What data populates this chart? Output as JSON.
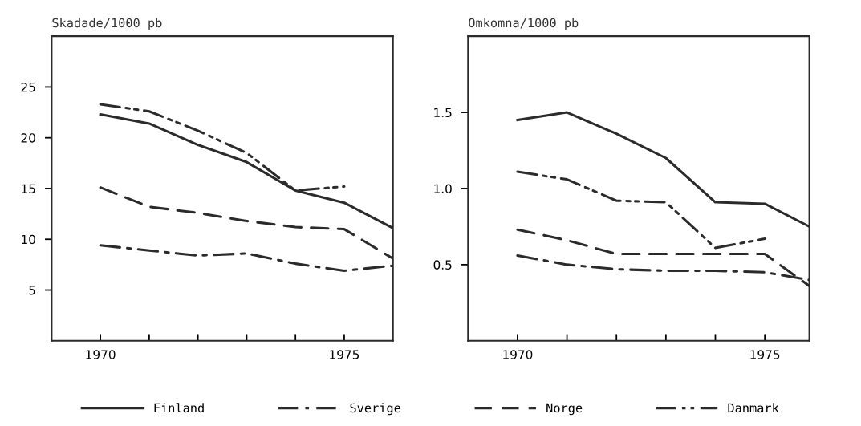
{
  "chart_data": [
    {
      "type": "line",
      "title": "Skadade/1000 pb",
      "legend": "bottom",
      "xlim": [
        1969,
        1976
      ],
      "ylim": [
        0,
        30
      ],
      "xticks": [
        1970,
        {
          "value": 1971,
          "label": null
        },
        {
          "value": 1972,
          "label": null
        },
        {
          "value": 1973,
          "label": null
        },
        {
          "value": 1974,
          "label": null
        },
        1975
      ],
      "yticks": [
        5,
        10,
        15,
        20,
        25
      ],
      "series": [
        {
          "name": "Finland",
          "color": "#2b2b2b",
          "line_style": "solid",
          "x": [
            1970,
            1971,
            1972,
            1973,
            1974,
            1975,
            1976
          ],
          "values": [
            22.3,
            21.4,
            19.3,
            17.6,
            14.8,
            13.6,
            11.1
          ]
        },
        {
          "name": "Sverige",
          "color": "#2b2b2b",
          "line_style": "dashdot",
          "x": [
            1970,
            1971,
            1972,
            1973,
            1974,
            1975,
            1976
          ],
          "values": [
            9.4,
            8.9,
            8.4,
            8.6,
            7.6,
            6.9,
            7.4
          ]
        },
        {
          "name": "Norge",
          "color": "#2b2b2b",
          "line_style": "dashed",
          "x": [
            1970,
            1971,
            1972,
            1973,
            1974,
            1975,
            1976
          ],
          "values": [
            15.1,
            13.2,
            12.6,
            11.8,
            11.2,
            11.0,
            8.1
          ]
        },
        {
          "name": "Danmark",
          "color": "#2b2b2b",
          "line_style": "dashdotdot",
          "x": [
            1970,
            1971,
            1972,
            1973,
            1974,
            1975
          ],
          "values": [
            23.3,
            22.6,
            20.7,
            18.5,
            14.8,
            15.2
          ]
        }
      ]
    },
    {
      "type": "line",
      "title": "Omkomna/1000 pb",
      "xlim": [
        1969,
        1975.9
      ],
      "ylim": [
        0,
        2
      ],
      "xticks": [
        1970,
        {
          "value": 1971,
          "label": null
        },
        {
          "value": 1972,
          "label": null
        },
        {
          "value": 1973,
          "label": null
        },
        {
          "value": 1974,
          "label": null
        },
        1975
      ],
      "yticks": [
        0.5,
        {
          "value": 1.0,
          "label": "1.0"
        },
        1.5
      ],
      "series": [
        {
          "color": "#2b2b2b",
          "line_style": "solid",
          "x": [
            1970,
            1971,
            1972,
            1973,
            1974,
            1975,
            1975.9
          ],
          "values": [
            1.45,
            1.5,
            1.36,
            1.2,
            0.91,
            0.9,
            0.75
          ]
        },
        {
          "color": "#2b2b2b",
          "line_style": "dashdot",
          "x": [
            1970,
            1971,
            1972,
            1973,
            1974,
            1975,
            1975.9
          ],
          "values": [
            0.56,
            0.5,
            0.47,
            0.46,
            0.46,
            0.45,
            0.4
          ]
        },
        {
          "color": "#2b2b2b",
          "line_style": "dashed",
          "x": [
            1970,
            1971,
            1972,
            1973,
            1974,
            1975,
            1975.9
          ],
          "values": [
            0.73,
            0.66,
            0.57,
            0.57,
            0.57,
            0.57,
            0.36
          ]
        },
        {
          "color": "#2b2b2b",
          "line_style": "dashdotdot",
          "x": [
            1970,
            1971,
            1972,
            1973,
            1974,
            1975
          ],
          "values": [
            1.11,
            1.06,
            0.92,
            0.91,
            0.61,
            0.67
          ]
        }
      ]
    }
  ]
}
